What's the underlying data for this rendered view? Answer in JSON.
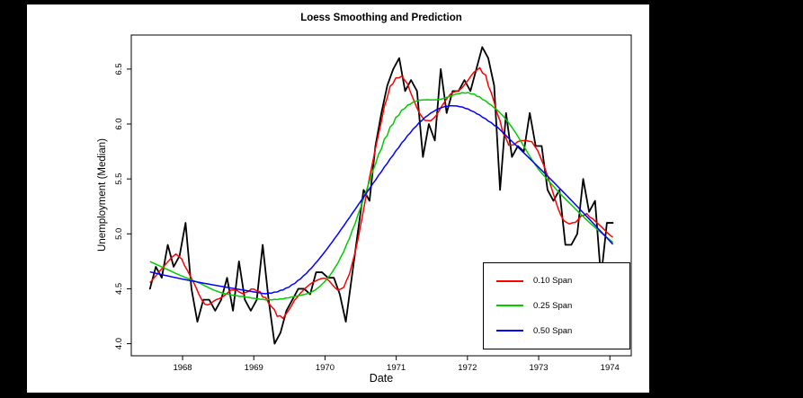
{
  "chart_data": {
    "type": "line",
    "title": "Loess Smoothing and Prediction",
    "xlabel": "Date",
    "ylabel": "Unemployment (Median)",
    "x_ticks": [
      1968,
      1969,
      1970,
      1971,
      1972,
      1973,
      1974
    ],
    "y_ticks": [
      "4.0",
      "4.5",
      "5.0",
      "5.5",
      "6.0",
      "6.5"
    ],
    "xlim": [
      1967.28,
      1974.3
    ],
    "ylim": [
      3.89,
      6.81
    ],
    "grid": false,
    "legend_position": "bottom-right",
    "background": "#ffffff",
    "outer_background": "#000000",
    "raw": {
      "color": "#000000"
    },
    "loess_series": [
      {
        "name": "0.10 Span",
        "color": "#ff0000",
        "span": 0.1
      },
      {
        "name": "0.25 Span",
        "color": "#00cc00",
        "span": 0.25
      },
      {
        "name": "0.50 Span",
        "color": "#0000ff",
        "span": 0.5
      }
    ],
    "x": [
      1967.542,
      1967.625,
      1967.708,
      1967.792,
      1967.875,
      1967.958,
      1968.042,
      1968.125,
      1968.208,
      1968.292,
      1968.375,
      1968.458,
      1968.542,
      1968.625,
      1968.708,
      1968.792,
      1968.875,
      1968.958,
      1969.042,
      1969.125,
      1969.208,
      1969.292,
      1969.375,
      1969.458,
      1969.542,
      1969.625,
      1969.708,
      1969.792,
      1969.875,
      1969.958,
      1970.042,
      1970.125,
      1970.208,
      1970.292,
      1970.375,
      1970.458,
      1970.542,
      1970.625,
      1970.708,
      1970.792,
      1970.875,
      1970.958,
      1971.042,
      1971.125,
      1971.208,
      1971.292,
      1971.375,
      1971.458,
      1971.542,
      1971.625,
      1971.708,
      1971.792,
      1971.875,
      1971.958,
      1972.042,
      1972.125,
      1972.208,
      1972.292,
      1972.375,
      1972.458,
      1972.542,
      1972.625,
      1972.708,
      1972.792,
      1972.875,
      1972.958,
      1973.042,
      1973.125,
      1973.208,
      1973.292,
      1973.375,
      1973.458,
      1973.542,
      1973.625,
      1973.708,
      1973.792,
      1973.875,
      1973.958,
      1974.042
    ],
    "y": [
      4.5,
      4.7,
      4.6,
      4.9,
      4.7,
      4.8,
      5.1,
      4.5,
      4.2,
      4.4,
      4.4,
      4.3,
      4.4,
      4.6,
      4.3,
      4.75,
      4.4,
      4.3,
      4.4,
      4.9,
      4.4,
      4.0,
      4.1,
      4.3,
      4.4,
      4.5,
      4.5,
      4.45,
      4.65,
      4.65,
      4.6,
      4.6,
      4.45,
      4.2,
      4.6,
      5.0,
      5.4,
      5.3,
      5.8,
      6.1,
      6.35,
      6.5,
      6.6,
      6.3,
      6.4,
      6.3,
      5.7,
      6.0,
      5.85,
      6.5,
      6.1,
      6.3,
      6.3,
      6.4,
      6.3,
      6.5,
      6.7,
      6.6,
      6.35,
      5.4,
      6.1,
      5.7,
      5.8,
      5.75,
      6.1,
      5.8,
      5.8,
      5.4,
      5.3,
      5.4,
      4.9,
      4.9,
      5.0,
      5.5,
      5.2,
      5.3,
      4.6,
      5.1,
      5.1
    ]
  }
}
